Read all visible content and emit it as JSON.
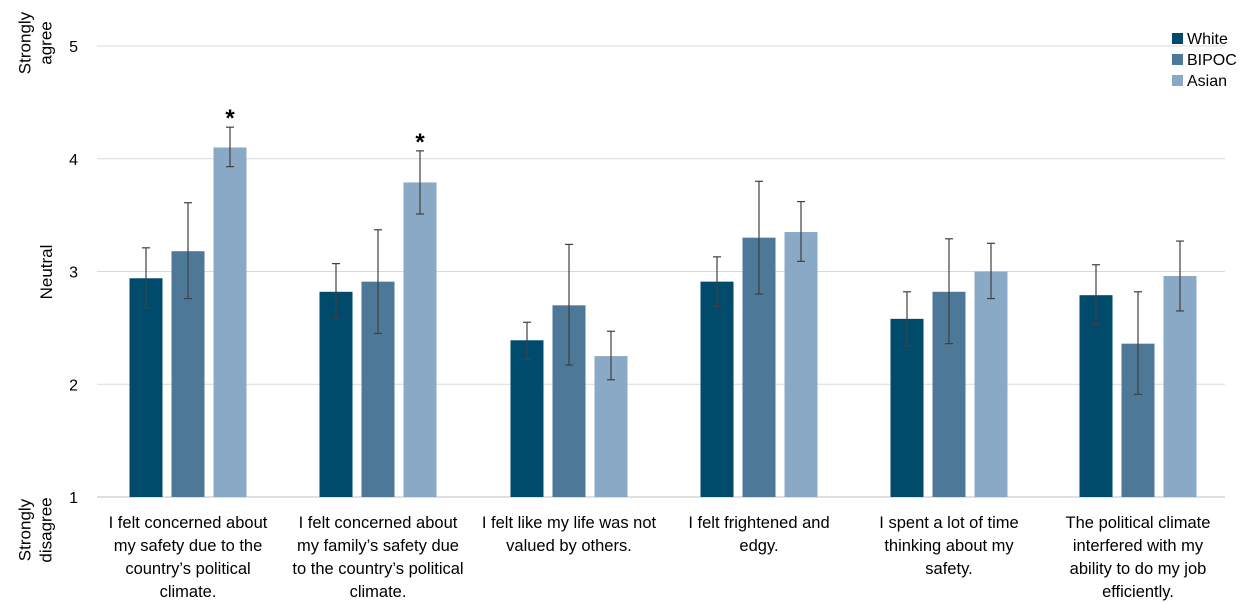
{
  "chart_data": {
    "type": "bar",
    "categories": [
      [
        "I felt concerned about",
        "my safety due to the",
        "country’s political",
        "climate."
      ],
      [
        "I felt concerned about",
        "my family’s safety due",
        "to the country’s political",
        "climate."
      ],
      [
        "I felt like my life was not",
        "valued by others."
      ],
      [
        "I felt frightened and",
        "edgy."
      ],
      [
        "I spent a lot of time",
        "thinking about my",
        "safety."
      ],
      [
        "The political climate",
        "interfered with my",
        "ability to do my job",
        "efficiently."
      ]
    ],
    "series": [
      {
        "name": "White",
        "color": "#004b6b",
        "values": [
          2.94,
          2.82,
          2.39,
          2.91,
          2.58,
          2.79
        ],
        "err_low": [
          2.68,
          2.58,
          2.22,
          2.69,
          2.34,
          2.53
        ],
        "err_high": [
          3.21,
          3.07,
          2.55,
          3.13,
          2.82,
          3.06
        ]
      },
      {
        "name": "BIPOC",
        "color": "#4e7898",
        "values": [
          3.18,
          2.91,
          2.7,
          3.3,
          2.82,
          2.36
        ],
        "err_low": [
          2.76,
          2.45,
          2.17,
          2.8,
          2.36,
          1.91
        ],
        "err_high": [
          3.61,
          3.37,
          3.24,
          3.8,
          3.29,
          2.82
        ]
      },
      {
        "name": "Asian",
        "color": "#8aa9c6",
        "values": [
          4.1,
          3.79,
          2.25,
          3.35,
          3.0,
          2.96
        ],
        "err_low": [
          3.93,
          3.51,
          2.04,
          3.09,
          2.76,
          2.65
        ],
        "err_high": [
          4.28,
          4.07,
          2.47,
          3.62,
          3.25,
          3.27
        ]
      }
    ],
    "significance": [
      {
        "category_index": 0,
        "series": "Asian",
        "label": "*"
      },
      {
        "category_index": 1,
        "series": "Asian",
        "label": "*"
      }
    ],
    "ylim": [
      1,
      5
    ],
    "yticks": [
      "1",
      "2",
      "3",
      "4",
      "5"
    ],
    "y_anchor_labels": {
      "top": [
        "Strongly",
        "agree"
      ],
      "middle": [
        "Neutral"
      ],
      "bottom": [
        "Strongly",
        "disagree"
      ]
    },
    "grid": true,
    "legend_position": "top-right"
  }
}
